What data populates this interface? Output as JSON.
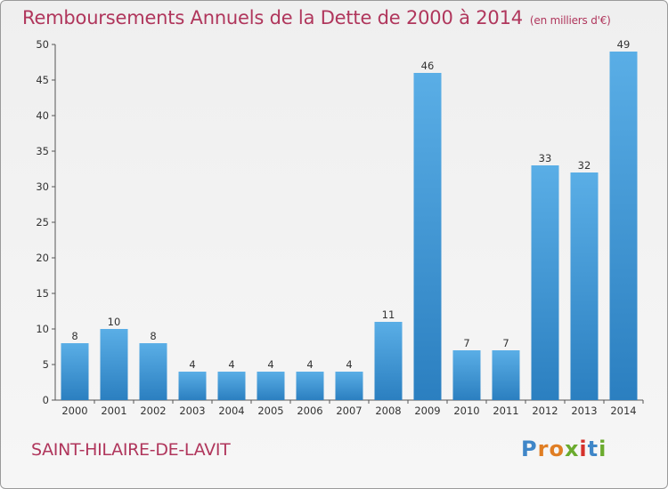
{
  "header": {
    "title": "Remboursements Annuels de la Dette de 2000 à 2014",
    "unit": "(en milliers d'€)"
  },
  "footer": {
    "commune": "SAINT-HILAIRE-DE-LAVIT",
    "logo": "Proxiti"
  },
  "colors": {
    "accent": "#b0365c",
    "bar_top": "#5aaee6",
    "bar_bottom": "#2b7fc0"
  },
  "chart_data": {
    "type": "bar",
    "categories": [
      "2000",
      "2001",
      "2002",
      "2003",
      "2004",
      "2005",
      "2006",
      "2007",
      "2008",
      "2009",
      "2010",
      "2011",
      "2012",
      "2013",
      "2014"
    ],
    "values": [
      8,
      10,
      8,
      4,
      4,
      4,
      4,
      4,
      11,
      46,
      7,
      7,
      33,
      32,
      49
    ],
    "ylim": [
      0,
      50
    ],
    "yticks": [
      0,
      5,
      10,
      15,
      20,
      25,
      30,
      35,
      40,
      45,
      50
    ],
    "grid": false,
    "data_labels": true
  }
}
